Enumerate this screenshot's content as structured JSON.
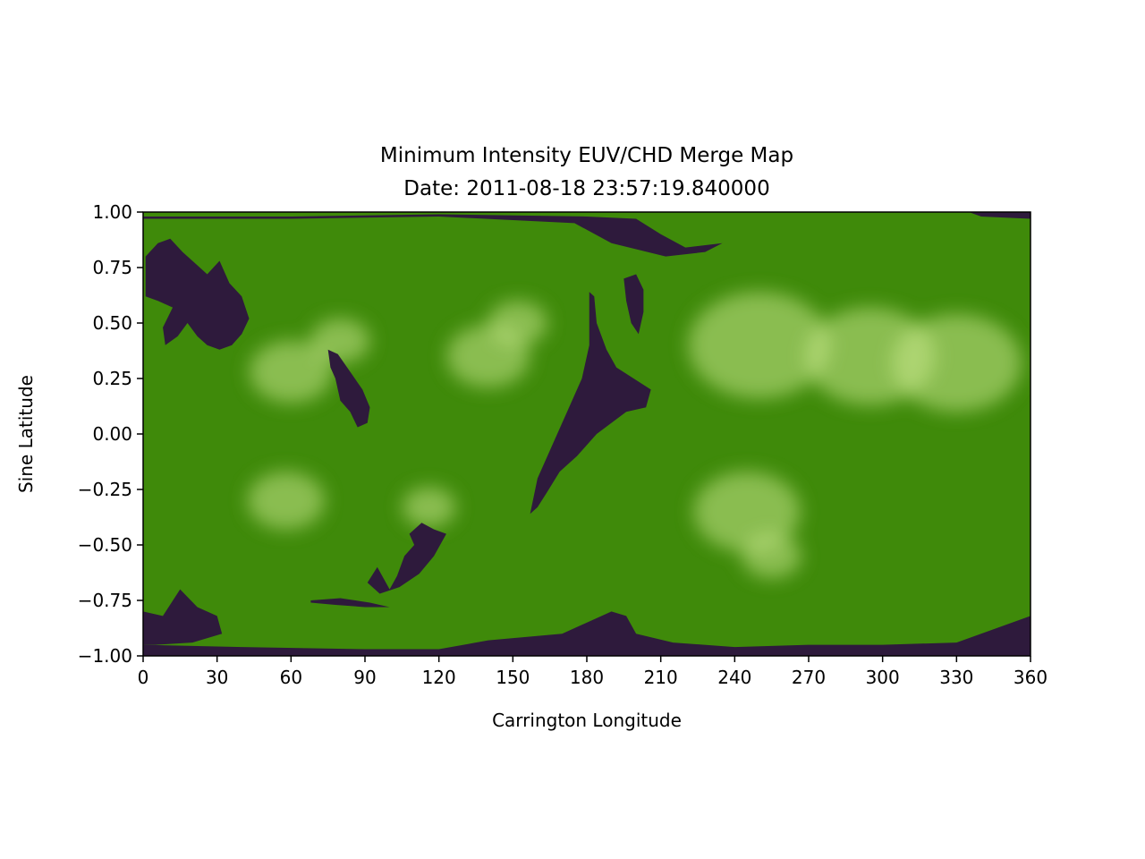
{
  "chart_data": {
    "type": "heatmap",
    "title": "Minimum Intensity EUV/CHD Merge Map",
    "subtitle": "Date: 2011-08-18 23:57:19.840000",
    "xlabel": "Carrington Longitude",
    "ylabel": "Sine Latitude",
    "xlim": [
      0,
      360
    ],
    "ylim": [
      -1.0,
      1.0
    ],
    "x_ticks": [
      0,
      30,
      60,
      90,
      120,
      150,
      180,
      210,
      240,
      270,
      300,
      330,
      360
    ],
    "x_tick_labels": [
      "0",
      "30",
      "60",
      "90",
      "120",
      "150",
      "180",
      "210",
      "240",
      "270",
      "300",
      "330",
      "360"
    ],
    "y_ticks": [
      1.0,
      0.75,
      0.5,
      0.25,
      0.0,
      -0.25,
      -0.5,
      -0.75,
      -1.0
    ],
    "y_tick_labels": [
      "1.00",
      "0.75",
      "0.50",
      "0.25",
      "0.00",
      "−0.25",
      "−0.50",
      "−0.75",
      "−1.00"
    ],
    "grid": false,
    "colors": {
      "euv_background": "#3f8a0a",
      "euv_bright": "#c8e88a",
      "coronal_hole": "#2e1a3c"
    },
    "bright_regions": [
      {
        "lon": 60,
        "lat": 0.28,
        "r": 14
      },
      {
        "lon": 80,
        "lat": 0.42,
        "r": 10
      },
      {
        "lon": 140,
        "lat": 0.35,
        "r": 14
      },
      {
        "lon": 152,
        "lat": 0.5,
        "r": 10
      },
      {
        "lon": 250,
        "lat": 0.4,
        "r": 24
      },
      {
        "lon": 295,
        "lat": 0.35,
        "r": 22
      },
      {
        "lon": 330,
        "lat": 0.32,
        "r": 22
      },
      {
        "lon": 58,
        "lat": -0.3,
        "r": 13
      },
      {
        "lon": 116,
        "lat": -0.33,
        "r": 9
      },
      {
        "lon": 245,
        "lat": -0.35,
        "r": 18
      },
      {
        "lon": 255,
        "lat": -0.55,
        "r": 10
      }
    ],
    "coronal_holes": [
      [
        [
          1,
          0.8
        ],
        [
          6,
          0.86
        ],
        [
          11,
          0.88
        ],
        [
          16,
          0.82
        ],
        [
          22,
          0.76
        ],
        [
          26,
          0.72
        ],
        [
          31,
          0.78
        ],
        [
          35,
          0.68
        ],
        [
          40,
          0.62
        ],
        [
          43,
          0.52
        ],
        [
          40,
          0.45
        ],
        [
          36,
          0.4
        ],
        [
          31,
          0.38
        ],
        [
          26,
          0.4
        ],
        [
          22,
          0.44
        ],
        [
          18,
          0.5
        ],
        [
          14,
          0.44
        ],
        [
          9,
          0.4
        ],
        [
          8,
          0.48
        ],
        [
          12,
          0.57
        ],
        [
          6,
          0.6
        ],
        [
          1,
          0.62
        ]
      ],
      [
        [
          75,
          0.38
        ],
        [
          79,
          0.36
        ],
        [
          84,
          0.28
        ],
        [
          89,
          0.2
        ],
        [
          92,
          0.12
        ],
        [
          91,
          0.05
        ],
        [
          87,
          0.03
        ],
        [
          84,
          0.1
        ],
        [
          80,
          0.15
        ],
        [
          78,
          0.25
        ],
        [
          76,
          0.3
        ]
      ],
      [
        [
          181,
          0.64
        ],
        [
          183,
          0.62
        ],
        [
          184,
          0.5
        ],
        [
          188,
          0.38
        ],
        [
          192,
          0.3
        ],
        [
          199,
          0.25
        ],
        [
          206,
          0.2
        ],
        [
          204,
          0.12
        ],
        [
          196,
          0.1
        ],
        [
          190,
          0.05
        ],
        [
          184,
          0.0
        ],
        [
          176,
          -0.1
        ],
        [
          169,
          -0.17
        ],
        [
          164,
          -0.26
        ],
        [
          160,
          -0.33
        ],
        [
          157,
          -0.36
        ],
        [
          160,
          -0.2
        ],
        [
          166,
          -0.05
        ],
        [
          172,
          0.1
        ],
        [
          178,
          0.25
        ],
        [
          181,
          0.4
        ]
      ],
      [
        [
          195,
          0.7
        ],
        [
          200,
          0.72
        ],
        [
          203,
          0.65
        ],
        [
          203,
          0.55
        ],
        [
          201,
          0.45
        ],
        [
          198,
          0.5
        ],
        [
          196,
          0.6
        ]
      ],
      [
        [
          100,
          -0.7
        ],
        [
          103,
          -0.64
        ],
        [
          106,
          -0.55
        ],
        [
          110,
          -0.5
        ],
        [
          108,
          -0.45
        ],
        [
          113,
          -0.4
        ],
        [
          118,
          -0.43
        ],
        [
          123,
          -0.45
        ],
        [
          118,
          -0.55
        ],
        [
          112,
          -0.63
        ],
        [
          104,
          -0.69
        ],
        [
          96,
          -0.72
        ],
        [
          91,
          -0.67
        ],
        [
          95,
          -0.6
        ]
      ],
      [
        [
          68,
          -0.75
        ],
        [
          80,
          -0.74
        ],
        [
          92,
          -0.76
        ],
        [
          100,
          -0.78
        ],
        [
          90,
          -0.78
        ],
        [
          78,
          -0.77
        ],
        [
          68,
          -0.76
        ]
      ],
      [
        [
          0,
          0.98
        ],
        [
          60,
          0.98
        ],
        [
          120,
          0.99
        ],
        [
          180,
          0.98
        ],
        [
          200,
          0.97
        ],
        [
          210,
          0.9
        ],
        [
          220,
          0.84
        ],
        [
          235,
          0.86
        ],
        [
          228,
          0.82
        ],
        [
          212,
          0.8
        ],
        [
          190,
          0.86
        ],
        [
          175,
          0.95
        ],
        [
          120,
          0.98
        ],
        [
          60,
          0.97
        ],
        [
          0,
          0.97
        ]
      ],
      [
        [
          340,
          0.98
        ],
        [
          360,
          0.97
        ],
        [
          360,
          1.0
        ],
        [
          335,
          1.0
        ]
      ],
      [
        [
          0,
          -0.8
        ],
        [
          8,
          -0.82
        ],
        [
          15,
          -0.7
        ],
        [
          22,
          -0.78
        ],
        [
          30,
          -0.82
        ],
        [
          32,
          -0.9
        ],
        [
          20,
          -0.94
        ],
        [
          5,
          -0.95
        ],
        [
          0,
          -0.95
        ]
      ],
      [
        [
          0,
          -1.0
        ],
        [
          0,
          -0.95
        ],
        [
          40,
          -0.96
        ],
        [
          90,
          -0.97
        ],
        [
          120,
          -0.97
        ],
        [
          140,
          -0.93
        ],
        [
          170,
          -0.9
        ],
        [
          190,
          -0.8
        ],
        [
          196,
          -0.82
        ],
        [
          200,
          -0.9
        ],
        [
          215,
          -0.94
        ],
        [
          240,
          -0.96
        ],
        [
          270,
          -0.95
        ],
        [
          300,
          -0.95
        ],
        [
          330,
          -0.94
        ],
        [
          360,
          -0.82
        ],
        [
          360,
          -1.0
        ]
      ]
    ]
  }
}
